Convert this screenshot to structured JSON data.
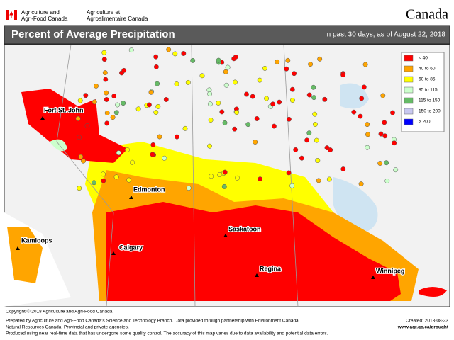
{
  "header": {
    "agency_en_1": "Agriculture and",
    "agency_en_2": "Agri-Food Canada",
    "agency_fr_1": "Agriculture et",
    "agency_fr_2": "Agroalimentaire Canada",
    "wordmark": "Canada"
  },
  "title": "Percent of Average Precipitation",
  "subtitle": "in past 30 days, as of August 22, 2018",
  "legend": [
    {
      "label": "< 40",
      "color": "#ff0000"
    },
    {
      "label": "40 to 60",
      "color": "#ffa500"
    },
    {
      "label": "60 to 85",
      "color": "#ffff00"
    },
    {
      "label": "85 to 115",
      "color": "#ccffcc"
    },
    {
      "label": "115 to 150",
      "color": "#66bb66"
    },
    {
      "label": "150 to 200",
      "color": "#c8c8f0"
    },
    {
      "label": "> 200",
      "color": "#0000ff"
    }
  ],
  "cities": [
    "Fort St. John",
    "Edmonton",
    "Kamloops",
    "Calgary",
    "Saskatoon",
    "Regina",
    "Winnipeg"
  ],
  "footer": {
    "copyright": "Copyright © 2018 Agriculture and Agri-Food Canada",
    "line1": "Prepared by Agriculture and Agri-Food Canada's Science and Technology Branch. Data provided through partnership with Environment Canada,",
    "line2": "Natural Resources Canada, Provincial and private agencies.",
    "line3": "Produced using near real-time data that has undergone some quality control. The accuracy of this map varies due to data availability and potential data errors.",
    "created": "Created: 2018-08-23",
    "url": "www.agr.gc.ca/drought"
  }
}
